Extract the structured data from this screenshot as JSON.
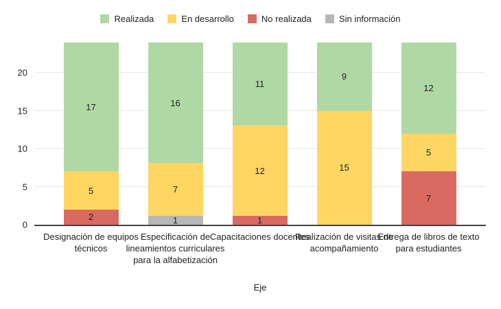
{
  "chart_data": {
    "type": "bar",
    "stacked": true,
    "title": "",
    "xlabel": "Eje",
    "ylabel": "",
    "ylim": [
      0,
      24
    ],
    "yticks": [
      0,
      5,
      10,
      15,
      20
    ],
    "grid": true,
    "legend_position": "top",
    "categories": [
      "Designación de equipos técnicos",
      "Especificación de lineamientos curriculares para la alfabetización",
      "Capacitaciones docentes",
      "Realización de visitas de acompañamiento",
      "Entrega de libros de texto para estudiantes"
    ],
    "series": [
      {
        "name": "Realizada",
        "color": "#b0d8a4",
        "values": [
          17,
          16,
          11,
          9,
          12
        ]
      },
      {
        "name": "En desarrollo",
        "color": "#fdd663",
        "values": [
          5,
          7,
          12,
          15,
          5
        ]
      },
      {
        "name": "No realizada",
        "color": "#d96a62",
        "values": [
          2,
          0,
          1,
          0,
          7
        ]
      },
      {
        "name": "Sin información",
        "color": "#b7b7b7",
        "values": [
          0,
          1,
          0,
          0,
          0
        ]
      }
    ],
    "stack_order_bottom_to_top": [
      "No realizada",
      "Sin información",
      "En desarrollo",
      "Realizada"
    ],
    "colors": {
      "axis_line": "#424242",
      "gridline": "#e6e6e6",
      "text": "#212121",
      "background": "#ffffff"
    }
  }
}
